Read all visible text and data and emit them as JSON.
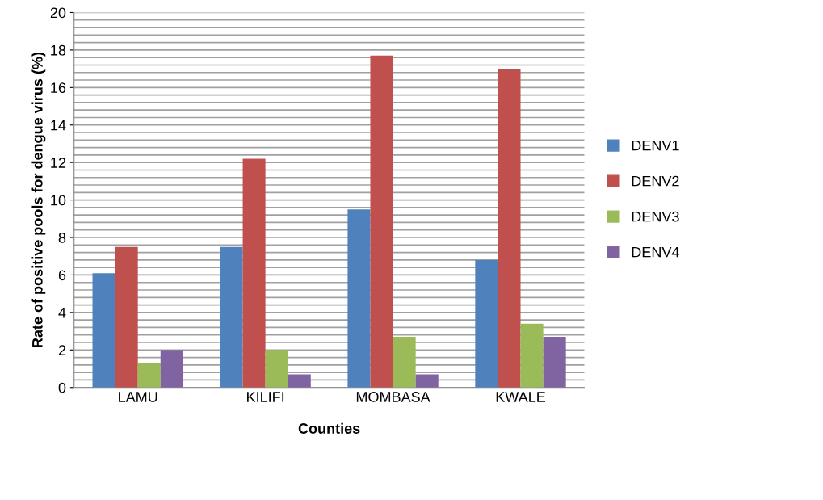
{
  "chart_data": {
    "type": "bar",
    "xlabel": "Counties",
    "ylabel": "Rate of positive pools for dengue virus (%)",
    "categories": [
      "LAMU",
      "KILIFI",
      "MOMBASA",
      "KWALE"
    ],
    "series": [
      {
        "name": "DENV1",
        "color": "#4f81bd",
        "values": [
          6.1,
          7.5,
          9.5,
          6.8
        ]
      },
      {
        "name": "DENV2",
        "color": "#c0504d",
        "values": [
          7.5,
          12.2,
          17.7,
          17.0
        ]
      },
      {
        "name": "DENV3",
        "color": "#9bbb59",
        "values": [
          1.3,
          2.0,
          2.7,
          3.4
        ]
      },
      {
        "name": "DENV4",
        "color": "#8064a2",
        "values": [
          2.0,
          0.7,
          0.7,
          2.7
        ]
      }
    ],
    "ylim": [
      0,
      20
    ],
    "yticks": [
      0,
      {
        "value": 0.4,
        "label": null
      },
      {
        "value": 0.8,
        "label": null
      },
      {
        "value": 1.2,
        "label": null
      },
      {
        "value": 1.6,
        "label": null
      },
      2,
      {
        "value": 2.4,
        "label": null
      },
      {
        "value": 2.8,
        "label": null
      },
      {
        "value": 3.2,
        "label": null
      },
      {
        "value": 3.6,
        "label": null
      },
      4,
      {
        "value": 4.4,
        "label": null
      },
      {
        "value": 4.8,
        "label": null
      },
      {
        "value": 5.2,
        "label": null
      },
      {
        "value": 5.6,
        "label": null
      },
      6,
      {
        "value": 6.4,
        "label": null
      },
      {
        "value": 6.8,
        "label": null
      },
      {
        "value": 7.2,
        "label": null
      },
      {
        "value": 7.6,
        "label": null
      },
      8,
      {
        "value": 8.4,
        "label": null
      },
      {
        "value": 8.8,
        "label": null
      },
      {
        "value": 9.2,
        "label": null
      },
      {
        "value": 9.6,
        "label": null
      },
      10,
      {
        "value": 10.4,
        "label": null
      },
      {
        "value": 10.8,
        "label": null
      },
      {
        "value": 11.2,
        "label": null
      },
      {
        "value": 11.6,
        "label": null
      },
      12,
      {
        "value": 12.4,
        "label": null
      },
      {
        "value": 12.8,
        "label": null
      },
      {
        "value": 13.2,
        "label": null
      },
      {
        "value": 13.6,
        "label": null
      },
      14,
      {
        "value": 14.4,
        "label": null
      },
      {
        "value": 14.8,
        "label": null
      },
      {
        "value": 15.2,
        "label": null
      },
      {
        "value": 15.6,
        "label": null
      },
      16,
      {
        "value": 16.4,
        "label": null
      },
      {
        "value": 16.8,
        "label": null
      },
      {
        "value": 17.2,
        "label": null
      },
      {
        "value": 17.6,
        "label": null
      },
      18,
      {
        "value": 18.4,
        "label": null
      },
      {
        "value": 18.8,
        "label": null
      },
      {
        "value": 19.2,
        "label": null
      },
      {
        "value": 19.6,
        "label": null
      },
      20
    ],
    "grid": "y",
    "legend": "right"
  }
}
